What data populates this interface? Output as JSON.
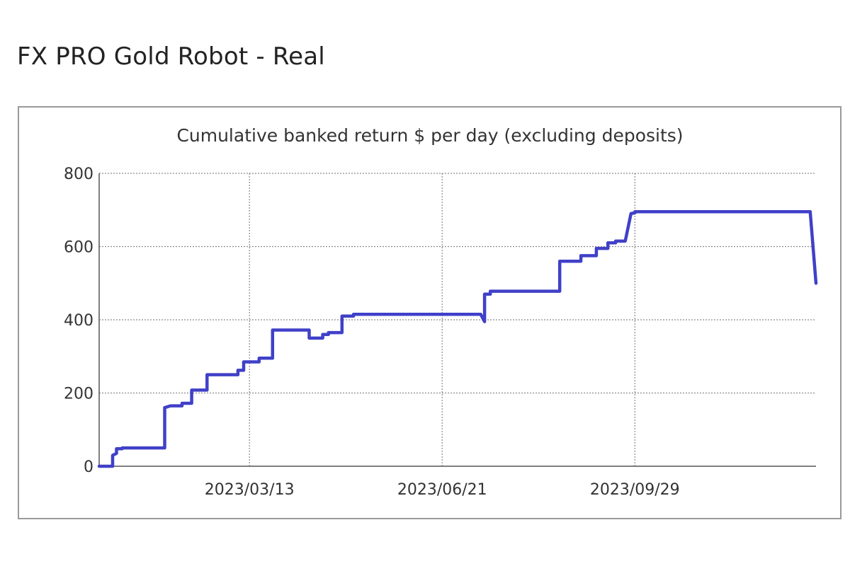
{
  "page": {
    "title": "FX PRO Gold Robot - Real"
  },
  "chart_data": {
    "type": "line",
    "title": "Cumulative banked return $ per day (excluding deposits)",
    "xlabel": "",
    "ylabel": "",
    "x_axis": {
      "type": "date",
      "range": [
        "2022-12-25",
        "2024-01-01"
      ],
      "ticks": [
        "2023/03/13",
        "2023/06/21",
        "2023/09/29"
      ]
    },
    "ylim": [
      0,
      800
    ],
    "yticks": [
      0,
      200,
      400,
      600,
      800
    ],
    "grid": true,
    "legend": "none",
    "series": [
      {
        "color": "#4040c8",
        "points": [
          [
            "2022-12-25",
            0
          ],
          [
            "2023-01-01",
            0
          ],
          [
            "2023-01-01",
            30
          ],
          [
            "2023-01-03",
            35
          ],
          [
            "2023-01-03",
            48
          ],
          [
            "2023-01-06",
            48
          ],
          [
            "2023-01-06",
            50
          ],
          [
            "2023-01-28",
            50
          ],
          [
            "2023-01-28",
            160
          ],
          [
            "2023-01-31",
            165
          ],
          [
            "2023-02-06",
            165
          ],
          [
            "2023-02-06",
            172
          ],
          [
            "2023-02-11",
            172
          ],
          [
            "2023-02-11",
            208
          ],
          [
            "2023-02-19",
            208
          ],
          [
            "2023-02-19",
            250
          ],
          [
            "2023-03-07",
            250
          ],
          [
            "2023-03-07",
            262
          ],
          [
            "2023-03-10",
            262
          ],
          [
            "2023-03-10",
            285
          ],
          [
            "2023-03-18",
            285
          ],
          [
            "2023-03-18",
            295
          ],
          [
            "2023-03-25",
            295
          ],
          [
            "2023-03-25",
            372
          ],
          [
            "2023-04-13",
            372
          ],
          [
            "2023-04-13",
            350
          ],
          [
            "2023-04-20",
            350
          ],
          [
            "2023-04-20",
            360
          ],
          [
            "2023-04-23",
            360
          ],
          [
            "2023-04-23",
            365
          ],
          [
            "2023-04-30",
            365
          ],
          [
            "2023-04-30",
            410
          ],
          [
            "2023-05-06",
            410
          ],
          [
            "2023-05-06",
            415
          ],
          [
            "2023-07-11",
            415
          ],
          [
            "2023-07-13",
            395
          ],
          [
            "2023-07-13",
            470
          ],
          [
            "2023-07-16",
            470
          ],
          [
            "2023-07-16",
            478
          ],
          [
            "2023-08-21",
            478
          ],
          [
            "2023-08-21",
            560
          ],
          [
            "2023-09-01",
            560
          ],
          [
            "2023-09-01",
            575
          ],
          [
            "2023-09-09",
            575
          ],
          [
            "2023-09-09",
            595
          ],
          [
            "2023-09-15",
            595
          ],
          [
            "2023-09-15",
            610
          ],
          [
            "2023-09-19",
            610
          ],
          [
            "2023-09-19",
            615
          ],
          [
            "2023-09-24",
            615
          ],
          [
            "2023-09-27",
            690
          ],
          [
            "2023-09-29",
            692
          ],
          [
            "2023-09-29",
            695
          ],
          [
            "2023-12-29",
            695
          ],
          [
            "2024-01-01",
            500
          ]
        ]
      }
    ]
  }
}
